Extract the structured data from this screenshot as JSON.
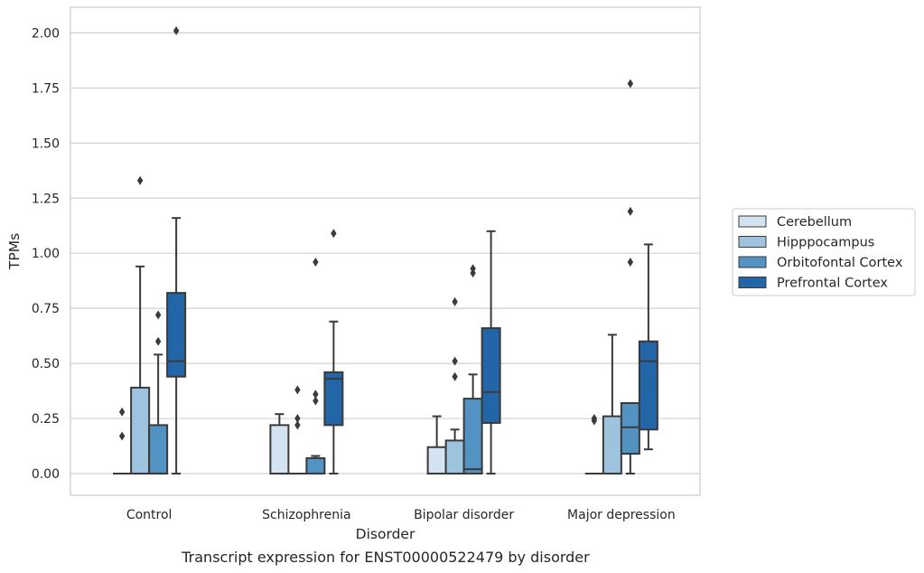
{
  "chart_data": {
    "type": "boxplot",
    "caption": "Transcript expression for ENST00000522479 by disorder",
    "xlabel": "Disorder",
    "ylabel": "TPMs",
    "ylim": [
      -0.1,
      2.12
    ],
    "yticks": [
      "0.00",
      "0.25",
      "0.50",
      "0.75",
      "1.00",
      "1.25",
      "1.50",
      "1.75",
      "2.00"
    ],
    "grid": true,
    "legend_position": "right",
    "categories": [
      "Control",
      "Schizophrenia",
      "Bipolar disorder",
      "Major depression"
    ],
    "series": [
      {
        "name": "Cerebellum",
        "color": "#d4e3f2",
        "boxes": [
          {
            "min": 0,
            "q1": 0,
            "median": 0,
            "q3": 0,
            "max": 0,
            "outliers": [
              0.17,
              0.28
            ]
          },
          {
            "min": 0,
            "q1": 0,
            "median": 0,
            "q3": 0.22,
            "max": 0.27,
            "outliers": []
          },
          {
            "min": 0,
            "q1": 0,
            "median": 0,
            "q3": 0.12,
            "max": 0.26,
            "outliers": []
          },
          {
            "min": 0,
            "q1": 0,
            "median": 0,
            "q3": 0,
            "max": 0,
            "outliers": [
              0.24,
              0.25
            ]
          }
        ]
      },
      {
        "name": "Hipppocampus",
        "color": "#9dc3df",
        "boxes": [
          {
            "min": 0,
            "q1": 0,
            "median": 0,
            "q3": 0.39,
            "max": 0.94,
            "outliers": [
              1.33
            ]
          },
          {
            "min": 0,
            "q1": 0,
            "median": 0,
            "q3": 0,
            "max": 0,
            "outliers": [
              0.22,
              0.25,
              0.38
            ]
          },
          {
            "min": 0,
            "q1": 0,
            "median": 0,
            "q3": 0.15,
            "max": 0.2,
            "outliers": [
              0.44,
              0.51,
              0.78
            ]
          },
          {
            "min": 0,
            "q1": 0,
            "median": 0,
            "q3": 0.26,
            "max": 0.63,
            "outliers": []
          }
        ]
      },
      {
        "name": "Orbitofontal Cortex",
        "color": "#5293c4",
        "boxes": [
          {
            "min": 0,
            "q1": 0,
            "median": 0,
            "q3": 0.22,
            "max": 0.54,
            "outliers": [
              0.6,
              0.72
            ]
          },
          {
            "min": 0,
            "q1": 0,
            "median": 0,
            "q3": 0.07,
            "max": 0.08,
            "outliers": [
              0.33,
              0.36,
              0.96
            ]
          },
          {
            "min": 0,
            "q1": 0,
            "median": 0.02,
            "q3": 0.34,
            "max": 0.45,
            "outliers": [
              0.91,
              0.93
            ]
          },
          {
            "min": 0,
            "q1": 0.09,
            "median": 0.21,
            "q3": 0.32,
            "max": 0.32,
            "outliers": [
              0.96,
              1.19,
              1.77
            ]
          }
        ]
      },
      {
        "name": "Prefrontal Cortex",
        "color": "#2366a8",
        "boxes": [
          {
            "min": 0,
            "q1": 0.44,
            "median": 0.51,
            "q3": 0.82,
            "max": 1.16,
            "outliers": [
              2.01
            ]
          },
          {
            "min": 0,
            "q1": 0.22,
            "median": 0.43,
            "q3": 0.46,
            "max": 0.69,
            "outliers": [
              1.09
            ]
          },
          {
            "min": 0,
            "q1": 0.23,
            "median": 0.37,
            "q3": 0.66,
            "max": 1.1,
            "outliers": []
          },
          {
            "min": 0.11,
            "q1": 0.2,
            "median": 0.51,
            "q3": 0.6,
            "max": 1.04,
            "outliers": []
          }
        ]
      }
    ]
  }
}
